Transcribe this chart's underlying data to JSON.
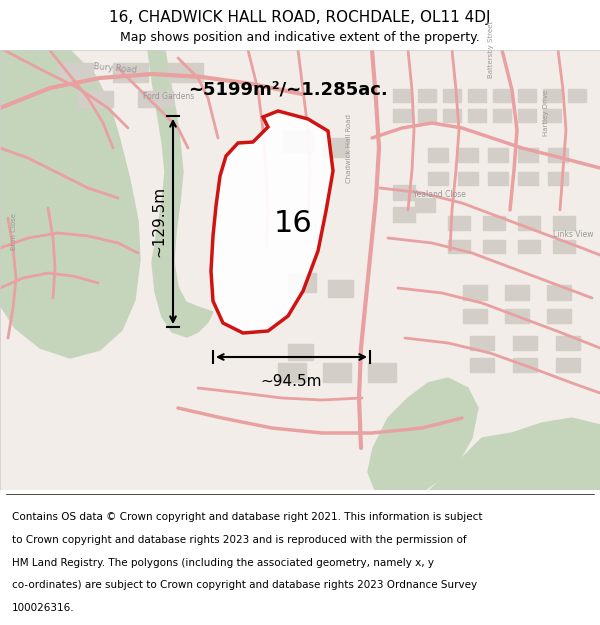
{
  "title_line1": "16, CHADWICK HALL ROAD, ROCHDALE, OL11 4DJ",
  "title_line2": "Map shows position and indicative extent of the property.",
  "footer_lines": [
    "Contains OS data © Crown copyright and database right 2021. This information is subject",
    "to Crown copyright and database rights 2023 and is reproduced with the permission of",
    "HM Land Registry. The polygons (including the associated geometry, namely x, y",
    "co-ordinates) are subject to Crown copyright and database rights 2023 Ordnance Survey",
    "100026316."
  ],
  "area_label": "~5199m²/~1.285ac.",
  "width_label": "~94.5m",
  "height_label": "~129.5m",
  "property_number": "16",
  "map_bg": "#f2ede8",
  "road_color": "#e8a0a0",
  "property_outline_color": "#cc0000",
  "green_color": "#c5d5bc",
  "building_color": "#d4cec8",
  "label_color": "#999999",
  "title_fontsize": 11,
  "subtitle_fontsize": 9,
  "footer_fontsize": 7.5,
  "figsize": [
    6.0,
    6.25
  ],
  "dpi": 100
}
